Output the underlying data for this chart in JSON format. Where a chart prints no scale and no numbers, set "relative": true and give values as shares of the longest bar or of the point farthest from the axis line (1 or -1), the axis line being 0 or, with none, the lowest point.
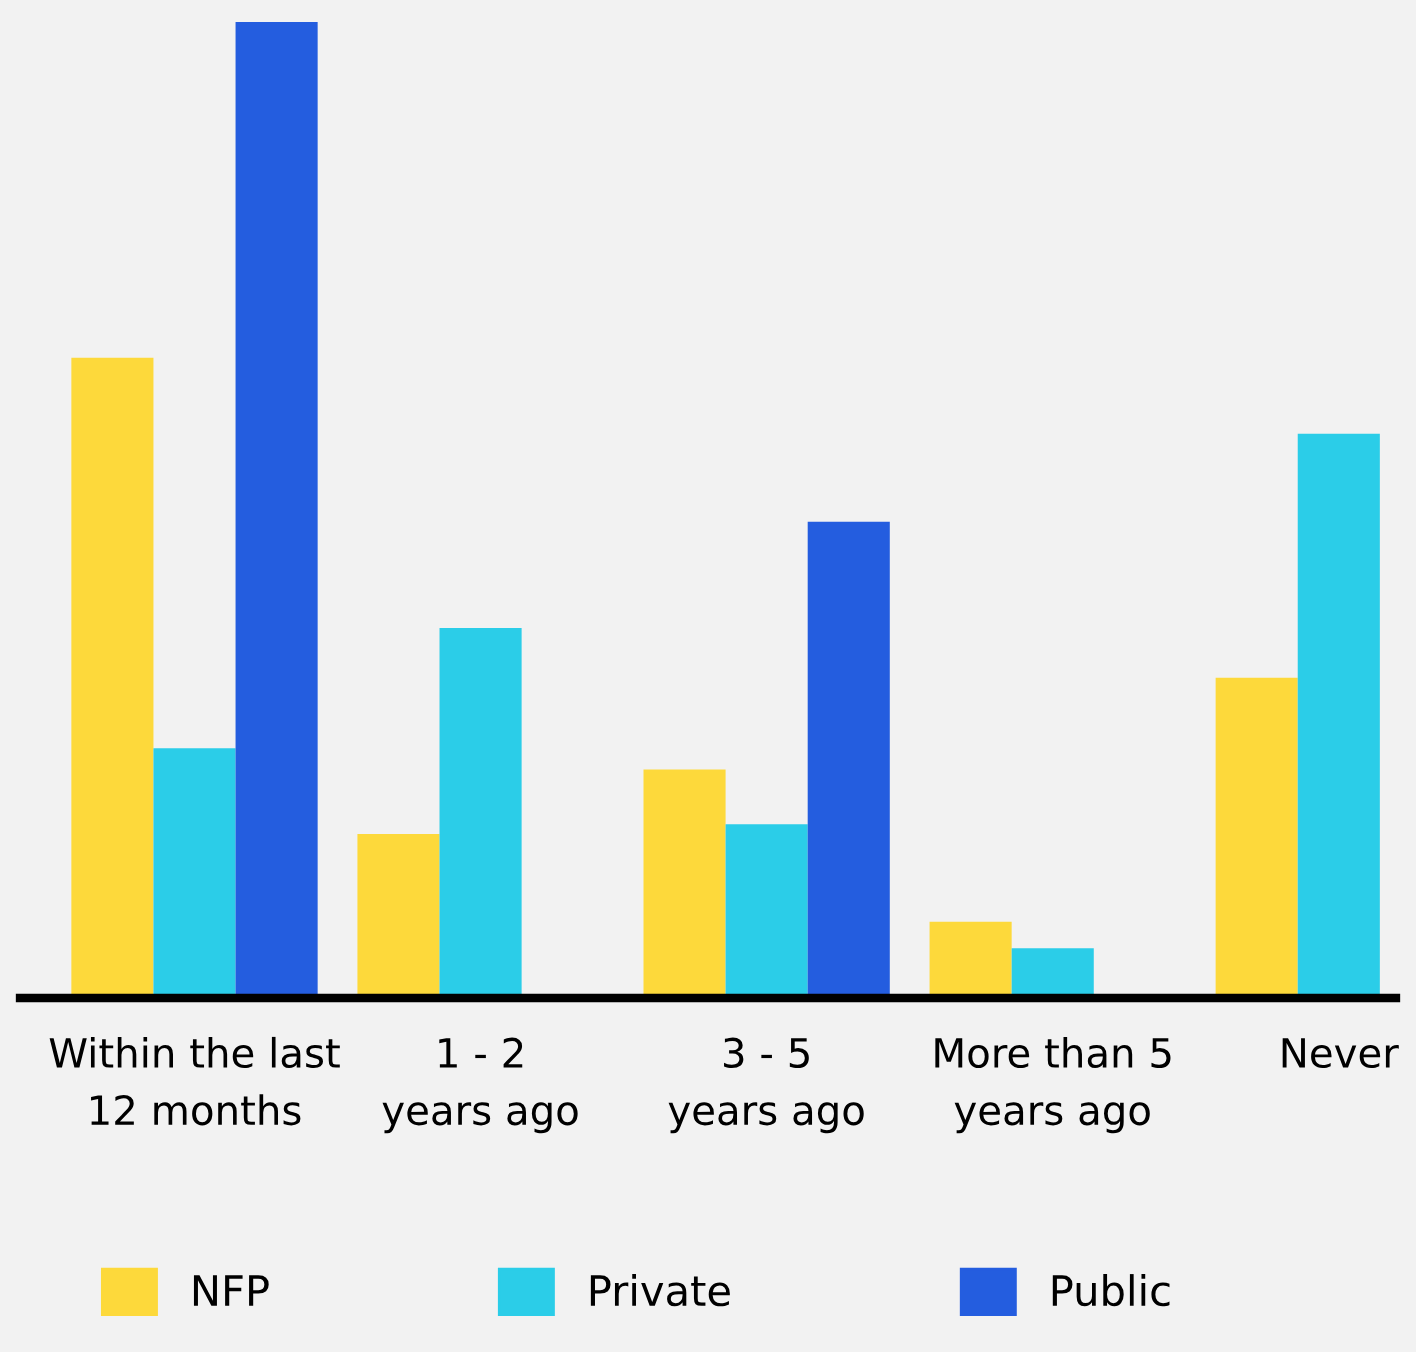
{
  "chart_data": {
    "type": "bar",
    "relative": true,
    "categories": [
      "Within the last\n12 months",
      "1 - 2\nyears ago",
      "3 - 5\nyears ago",
      "More than 5\nyears ago",
      "Never"
    ],
    "series": [
      {
        "name": "NFP",
        "color": "#fdd93b",
        "values": [
          0.656,
          0.168,
          0.234,
          0.078,
          0.328
        ]
      },
      {
        "name": "Private",
        "color": "#2bcde8",
        "values": [
          0.256,
          0.379,
          0.178,
          0.051,
          0.578
        ]
      },
      {
        "name": "Public",
        "color": "#245ddf",
        "values": [
          1,
          null,
          0.488,
          null,
          null
        ]
      }
    ],
    "legend": "bottom",
    "grid": false
  }
}
